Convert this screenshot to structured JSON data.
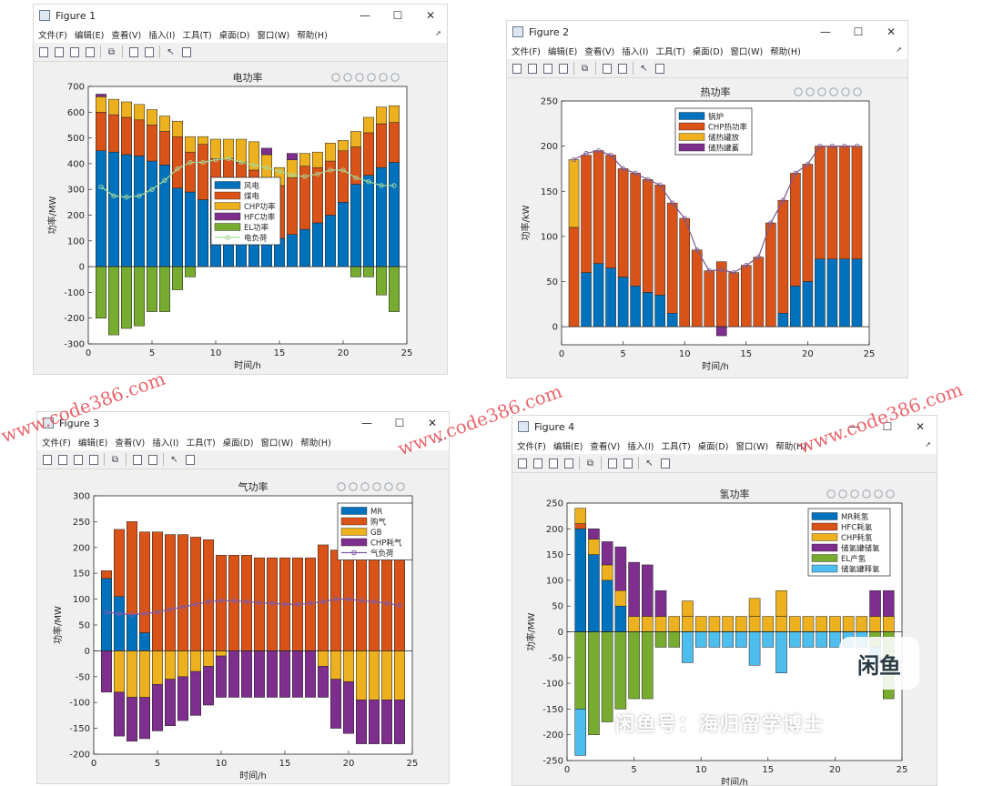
{
  "menu_items": [
    "文件(F)",
    "编辑(E)",
    "查看(V)",
    "插入(I)",
    "工具(T)",
    "桌面(D)",
    "窗口(W)",
    "帮助(H)"
  ],
  "window_controls": [
    "—",
    "☐",
    "✕"
  ],
  "figures": [
    {
      "window_title": "Figure 1",
      "plot_title": "电功率",
      "xlabel": "时间/h",
      "ylabel": "功率/MW",
      "chart_data": {
        "type": "bar",
        "stacked": true,
        "x": [
          1,
          2,
          3,
          4,
          5,
          6,
          7,
          8,
          9,
          10,
          11,
          12,
          13,
          14,
          15,
          16,
          17,
          18,
          19,
          20,
          21,
          22,
          23,
          24
        ],
        "xlim": [
          0,
          25
        ],
        "ylim": [
          -300,
          700
        ],
        "xticks": [
          0,
          5,
          10,
          15,
          20,
          25
        ],
        "yticks": [
          -300,
          -200,
          -100,
          0,
          100,
          200,
          300,
          400,
          500,
          600,
          700
        ],
        "legend_position": "lower-center",
        "series": [
          {
            "name": "风电",
            "color": "#0072BD",
            "values": [
              450,
              445,
              435,
              430,
              410,
              395,
              305,
              290,
              260,
              235,
              180,
              150,
              115,
              100,
              110,
              125,
              145,
              170,
              200,
              250,
              320,
              355,
              385,
              405
            ]
          },
          {
            "name": "煤电",
            "color": "#D95319",
            "values": [
              150,
              145,
              145,
              140,
              140,
              130,
              200,
              155,
              215,
              185,
              240,
              255,
              260,
              235,
              205,
              220,
              245,
              215,
              210,
              200,
              145,
              165,
              170,
              155
            ]
          },
          {
            "name": "CHP功率",
            "color": "#EDB120",
            "values": [
              60,
              60,
              60,
              60,
              60,
              60,
              60,
              60,
              30,
              75,
              75,
              90,
              110,
              100,
              70,
              70,
              50,
              60,
              70,
              40,
              60,
              60,
              65,
              65
            ]
          },
          {
            "name": "HFC功率",
            "color": "#7E2F8E",
            "values": [
              10,
              0,
              0,
              0,
              0,
              0,
              0,
              0,
              0,
              0,
              0,
              0,
              0,
              25,
              0,
              25,
              0,
              0,
              0,
              0,
              0,
              0,
              0,
              0
            ]
          },
          {
            "name": "EL功率",
            "color": "#77AC30",
            "values": [
              -200,
              -265,
              -240,
              -230,
              -175,
              -175,
              -90,
              -40,
              0,
              0,
              0,
              0,
              0,
              0,
              0,
              0,
              0,
              0,
              0,
              0,
              -40,
              -40,
              -110,
              -175
            ]
          }
        ],
        "line": {
          "name": "电负荷",
          "color": "#a6d99a",
          "values": [
            310,
            275,
            270,
            275,
            300,
            335,
            380,
            405,
            405,
            415,
            420,
            405,
            395,
            385,
            370,
            355,
            350,
            360,
            375,
            375,
            345,
            330,
            315,
            315
          ]
        }
      }
    },
    {
      "window_title": "Figure 2",
      "plot_title": "热功率",
      "xlabel": "时间/h",
      "ylabel": "功率/kW",
      "chart_data": {
        "type": "bar",
        "stacked": true,
        "x": [
          1,
          2,
          3,
          4,
          5,
          6,
          7,
          8,
          9,
          10,
          11,
          12,
          13,
          14,
          15,
          16,
          17,
          18,
          19,
          20,
          21,
          22,
          23,
          24
        ],
        "xlim": [
          0,
          25
        ],
        "ylim": [
          -20,
          250
        ],
        "xticks": [
          0,
          5,
          10,
          15,
          20,
          25
        ],
        "yticks": [
          0,
          50,
          100,
          150,
          200,
          250
        ],
        "legend_position": "top-left",
        "series": [
          {
            "name": "锅炉",
            "color": "#0072BD",
            "values": [
              0,
              60,
              70,
              65,
              55,
              45,
              38,
              35,
              15,
              0,
              0,
              0,
              0,
              0,
              0,
              0,
              0,
              15,
              45,
              50,
              75,
              75,
              75,
              75
            ]
          },
          {
            "name": "CHP热功率",
            "color": "#D95319",
            "values": [
              110,
              130,
              125,
              125,
              120,
              125,
              125,
              122,
              122,
              120,
              85,
              62,
              72,
              60,
              68,
              77,
              115,
              125,
              125,
              130,
              125,
              125,
              125,
              125
            ]
          },
          {
            "name": "储热罐放",
            "color": "#EDB120",
            "values": [
              75,
              0,
              0,
              0,
              0,
              0,
              0,
              0,
              0,
              0,
              0,
              0,
              0,
              0,
              0,
              0,
              0,
              0,
              0,
              0,
              0,
              0,
              0,
              0
            ]
          },
          {
            "name": "储热罐蓄",
            "color": "#7E2F8E",
            "values": [
              0,
              0,
              0,
              0,
              0,
              0,
              0,
              0,
              0,
              0,
              0,
              0,
              -10,
              0,
              0,
              0,
              0,
              0,
              0,
              0,
              0,
              0,
              0,
              0
            ]
          }
        ],
        "line": {
          "name": "",
          "color": "#7e5a8e",
          "values": [
            185,
            192,
            195,
            190,
            175,
            170,
            163,
            157,
            137,
            120,
            85,
            62,
            63,
            60,
            68,
            77,
            115,
            140,
            170,
            180,
            200,
            200,
            200,
            200
          ]
        }
      }
    },
    {
      "window_title": "Figure 3",
      "plot_title": "气功率",
      "xlabel": "时间/h",
      "ylabel": "功率/MW",
      "chart_data": {
        "type": "bar",
        "stacked": true,
        "x": [
          1,
          2,
          3,
          4,
          5,
          6,
          7,
          8,
          9,
          10,
          11,
          12,
          13,
          14,
          15,
          16,
          17,
          18,
          19,
          20,
          21,
          22,
          23,
          24
        ],
        "xlim": [
          0,
          25
        ],
        "ylim": [
          -200,
          300
        ],
        "xticks": [
          0,
          5,
          10,
          15,
          20,
          25
        ],
        "yticks": [
          -200,
          -150,
          -100,
          -50,
          0,
          50,
          100,
          150,
          200,
          250,
          300
        ],
        "legend_position": "top-right",
        "series": [
          {
            "name": "MR",
            "color": "#0072BD",
            "values": [
              140,
              105,
              70,
              35,
              0,
              0,
              0,
              0,
              0,
              0,
              0,
              0,
              0,
              0,
              0,
              0,
              0,
              0,
              0,
              0,
              0,
              0,
              0,
              0
            ]
          },
          {
            "name": "购气",
            "color": "#D95319",
            "values": [
              15,
              130,
              180,
              195,
              230,
              225,
              225,
              220,
              215,
              185,
              185,
              185,
              180,
              180,
              180,
              180,
              180,
              205,
              195,
              190,
              185,
              185,
              185,
              185
            ]
          },
          {
            "name": "GB",
            "color": "#EDB120",
            "values": [
              0,
              -80,
              -90,
              -90,
              -65,
              -55,
              -50,
              -40,
              -30,
              -10,
              0,
              0,
              0,
              0,
              0,
              0,
              0,
              -30,
              -55,
              -60,
              -95,
              -95,
              -95,
              -95
            ]
          },
          {
            "name": "CHP耗气",
            "color": "#7E2F8E",
            "values": [
              -80,
              -85,
              -85,
              -80,
              -90,
              -90,
              -85,
              -85,
              -75,
              -80,
              -90,
              -90,
              -90,
              -90,
              -90,
              -90,
              -90,
              -60,
              -95,
              -100,
              -85,
              -85,
              -85,
              -85
            ]
          }
        ],
        "line": {
          "name": "气负荷",
          "color": "#7e5aa8",
          "values": [
            75,
            72,
            70,
            72,
            75,
            80,
            85,
            90,
            95,
            97,
            97,
            95,
            93,
            92,
            90,
            90,
            92,
            95,
            100,
            100,
            97,
            95,
            92,
            88
          ]
        }
      }
    },
    {
      "window_title": "Figure 4",
      "plot_title": "氢功率",
      "xlabel": "时间/h",
      "ylabel": "功率/MW",
      "chart_data": {
        "type": "bar",
        "stacked": true,
        "x": [
          1,
          2,
          3,
          4,
          5,
          6,
          7,
          8,
          9,
          10,
          11,
          12,
          13,
          14,
          15,
          16,
          17,
          18,
          19,
          20,
          21,
          22,
          23,
          24
        ],
        "xlim": [
          0,
          25
        ],
        "ylim": [
          -250,
          250
        ],
        "xticks": [
          0,
          5,
          10,
          15,
          20,
          25
        ],
        "yticks": [
          -250,
          -200,
          -150,
          -100,
          -50,
          0,
          50,
          100,
          150,
          200,
          250
        ],
        "legend_position": "top-right",
        "series": [
          {
            "name": "MR耗氢",
            "color": "#0072BD",
            "values": [
              200,
              150,
              100,
              50,
              0,
              0,
              0,
              0,
              0,
              0,
              0,
              0,
              0,
              0,
              0,
              0,
              0,
              0,
              0,
              0,
              0,
              0,
              0,
              0
            ]
          },
          {
            "name": "HFC耗氢",
            "color": "#D95319",
            "values": [
              10,
              0,
              0,
              0,
              0,
              0,
              0,
              0,
              0,
              0,
              0,
              0,
              0,
              0,
              0,
              0,
              0,
              0,
              0,
              0,
              0,
              0,
              0,
              0
            ]
          },
          {
            "name": "CHP耗氢",
            "color": "#EDB120",
            "values": [
              30,
              30,
              30,
              30,
              30,
              30,
              30,
              30,
              30,
              30,
              30,
              30,
              30,
              30,
              30,
              30,
              30,
              30,
              30,
              30,
              30,
              30,
              30,
              30
            ]
          },
          {
            "name": "储氢罐储氢",
            "color": "#7E2F8E",
            "values": [
              0,
              20,
              45,
              85,
              105,
              100,
              50,
              0,
              0,
              0,
              0,
              0,
              0,
              0,
              0,
              0,
              0,
              0,
              0,
              0,
              0,
              0,
              50,
              50
            ]
          },
          {
            "name": "EL产氢",
            "color": "#77AC30",
            "values": [
              -150,
              -200,
              -175,
              -150,
              -130,
              -130,
              -30,
              -30,
              0,
              0,
              0,
              0,
              0,
              0,
              0,
              0,
              0,
              0,
              0,
              0,
              0,
              0,
              -30,
              -130
            ]
          },
          {
            "name": "储氢罐释氢",
            "color": "#4DBEEE",
            "values": [
              -90,
              0,
              0,
              0,
              0,
              0,
              0,
              0,
              -60,
              -30,
              -30,
              -30,
              -30,
              -65,
              -30,
              -80,
              -30,
              -30,
              -30,
              -30,
              -30,
              -30,
              -30,
              0
            ]
          },
          {
            "name": "",
            "color": "#EDB120",
            "values": [
              0,
              0,
              0,
              0,
              0,
              0,
              0,
              0,
              30,
              0,
              0,
              0,
              0,
              35,
              0,
              50,
              0,
              0,
              0,
              0,
              0,
              0,
              0,
              0
            ]
          }
        ]
      }
    }
  ],
  "watermarks": [
    "www.code386.com",
    "www.code386.com",
    "www.code386.com"
  ],
  "caption": "闲鱼号：海归留学博士",
  "logo_text": "闲鱼"
}
